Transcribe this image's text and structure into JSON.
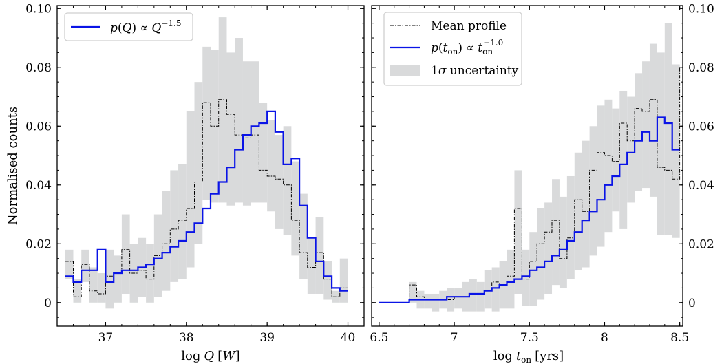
{
  "chart_data": [
    {
      "type": "line",
      "xlabel": "log Q [W]",
      "ylabel": "Normalised counts",
      "xlim": [
        36.4,
        40.2
      ],
      "ylim": [
        -0.008,
        0.101
      ],
      "xticks": [
        37,
        38,
        39,
        40
      ],
      "yticks": [
        0,
        0.02,
        0.04,
        0.06,
        0.08,
        0.1
      ],
      "ytick_labels": [
        "0",
        "0.02",
        "0.04",
        "0.06",
        "0.08",
        "0.10"
      ],
      "ytick_side": "left",
      "legend_placement": "top-left",
      "grid": false,
      "bin_edges": [
        36.5,
        36.6,
        36.7,
        36.8,
        36.9,
        37.0,
        37.1,
        37.2,
        37.3,
        37.4,
        37.5,
        37.6,
        37.7,
        37.8,
        37.9,
        38.0,
        38.1,
        38.2,
        38.3,
        38.4,
        38.5,
        38.6,
        38.7,
        38.8,
        38.9,
        39.0,
        39.1,
        39.2,
        39.3,
        39.4,
        39.5,
        39.6,
        39.7,
        39.8,
        39.9,
        40.0
      ],
      "series": [
        {
          "name": "Mean profile",
          "style": "dashdot",
          "color": "#000000",
          "values": [
            0.014,
            0.002,
            0.013,
            0.004,
            0.003,
            0.009,
            0.01,
            0.018,
            0.01,
            0.011,
            0.008,
            0.016,
            0.02,
            0.025,
            0.028,
            0.032,
            0.041,
            0.068,
            0.06,
            0.069,
            0.064,
            0.057,
            0.056,
            0.057,
            0.045,
            0.043,
            0.042,
            0.04,
            0.028,
            0.017,
            0.012,
            0.017,
            0.008,
            0.002,
            0.005
          ]
        },
        {
          "name": "p(Q) ∝ Q^−1.5",
          "style": "solid",
          "color": "#0a14e6",
          "values": [
            0.009,
            0.007,
            0.011,
            0.011,
            0.018,
            0.007,
            0.01,
            0.011,
            0.011,
            0.012,
            0.013,
            0.015,
            0.017,
            0.019,
            0.021,
            0.024,
            0.027,
            0.032,
            0.037,
            0.041,
            0.046,
            0.052,
            0.057,
            0.06,
            0.061,
            0.065,
            0.058,
            0.047,
            0.049,
            0.033,
            0.022,
            0.014,
            0.009,
            0.005,
            0.004
          ]
        }
      ],
      "band": {
        "name": "1σ uncertainty",
        "color": "#d9dadb",
        "lower": [
          0.008,
          0.0,
          0.007,
          0.0,
          0.0,
          -0.002,
          0.0,
          0.003,
          0.0,
          0.002,
          0.0,
          0.002,
          0.004,
          0.007,
          0.008,
          0.012,
          0.02,
          0.035,
          0.034,
          0.034,
          0.033,
          0.034,
          0.033,
          0.034,
          0.034,
          0.031,
          0.025,
          0.023,
          0.016,
          0.008,
          0.003,
          0.003,
          0.001,
          0.0,
          0.0
        ],
        "upper": [
          0.018,
          0.008,
          0.018,
          0.012,
          0.01,
          0.018,
          0.016,
          0.03,
          0.02,
          0.022,
          0.02,
          0.03,
          0.038,
          0.045,
          0.047,
          0.065,
          0.075,
          0.087,
          0.086,
          0.097,
          0.085,
          0.09,
          0.082,
          0.082,
          0.068,
          0.062,
          0.057,
          0.06,
          0.048,
          0.037,
          0.022,
          0.029,
          0.014,
          0.004,
          0.015
        ]
      }
    },
    {
      "type": "line",
      "xlabel": "log t_on [yrs]",
      "ylabel": "",
      "xlim": [
        6.45,
        8.52
      ],
      "ylim": [
        -0.008,
        0.101
      ],
      "xticks": [
        6.5,
        7,
        7.5,
        8,
        8.5
      ],
      "yticks": [
        0,
        0.02,
        0.04,
        0.06,
        0.08,
        0.1
      ],
      "ytick_labels": [
        "0",
        "0.02",
        "0.04",
        "0.06",
        "0.08",
        "0.10"
      ],
      "ytick_side": "right",
      "legend_placement": "top-left",
      "grid": false,
      "bin_edges": [
        6.5,
        6.55,
        6.6,
        6.65,
        6.7,
        6.75,
        6.8,
        6.85,
        6.9,
        6.95,
        7.0,
        7.05,
        7.1,
        7.15,
        7.2,
        7.25,
        7.3,
        7.35,
        7.4,
        7.45,
        7.5,
        7.55,
        7.6,
        7.65,
        7.7,
        7.75,
        7.8,
        7.85,
        7.9,
        7.95,
        8.0,
        8.05,
        8.1,
        8.15,
        8.2,
        8.25,
        8.3,
        8.35,
        8.4,
        8.45,
        8.5
      ],
      "series": [
        {
          "name": "Mean profile",
          "style": "dashdot",
          "color": "#000000",
          "values": [
            0.0,
            0.0,
            0.0,
            0.0,
            0.006,
            0.002,
            0.001,
            0.001,
            0.001,
            0.001,
            0.002,
            0.002,
            0.003,
            0.003,
            0.004,
            0.007,
            0.006,
            0.009,
            0.032,
            0.008,
            0.014,
            0.02,
            0.024,
            0.028,
            0.015,
            0.022,
            0.035,
            0.031,
            0.045,
            0.051,
            0.05,
            0.048,
            0.061,
            0.055,
            0.066,
            0.065,
            0.069,
            0.046,
            0.045,
            0.042,
            0.08
          ]
        },
        {
          "name": "p(t_on) ∝ t_on^−1.0",
          "style": "solid",
          "color": "#0a14e6",
          "values": [
            0.0,
            0.0,
            0.0,
            0.0,
            0.001,
            0.001,
            0.001,
            0.001,
            0.001,
            0.002,
            0.002,
            0.002,
            0.003,
            0.003,
            0.004,
            0.005,
            0.006,
            0.007,
            0.008,
            0.009,
            0.011,
            0.012,
            0.014,
            0.016,
            0.018,
            0.021,
            0.024,
            0.028,
            0.031,
            0.035,
            0.04,
            0.043,
            0.047,
            0.051,
            0.055,
            0.058,
            0.055,
            0.063,
            0.061,
            0.052,
            0.052
          ]
        }
      ],
      "band": {
        "name": "1σ uncertainty",
        "color": "#d9dadb",
        "lower": [
          0.0,
          0.0,
          0.0,
          0.0,
          0.0,
          -0.002,
          -0.002,
          -0.003,
          -0.002,
          -0.003,
          -0.002,
          -0.003,
          -0.003,
          -0.003,
          -0.002,
          -0.003,
          -0.002,
          -0.002,
          0.003,
          -0.001,
          -0.001,
          0.001,
          0.003,
          0.006,
          0.005,
          0.008,
          0.011,
          0.012,
          0.016,
          0.019,
          0.024,
          0.031,
          0.025,
          0.034,
          0.038,
          0.039,
          0.036,
          0.023,
          0.023,
          0.022,
          0.022
        ],
        "upper": [
          0.0,
          0.0,
          0.0,
          0.0,
          0.007,
          0.004,
          0.003,
          0.003,
          0.004,
          0.005,
          0.005,
          0.007,
          0.008,
          0.007,
          0.011,
          0.012,
          0.014,
          0.018,
          0.045,
          0.018,
          0.024,
          0.032,
          0.034,
          0.042,
          0.036,
          0.043,
          0.051,
          0.055,
          0.06,
          0.067,
          0.069,
          0.066,
          0.072,
          0.07,
          0.078,
          0.082,
          0.088,
          0.085,
          0.095,
          0.081,
          0.104
        ]
      }
    }
  ]
}
